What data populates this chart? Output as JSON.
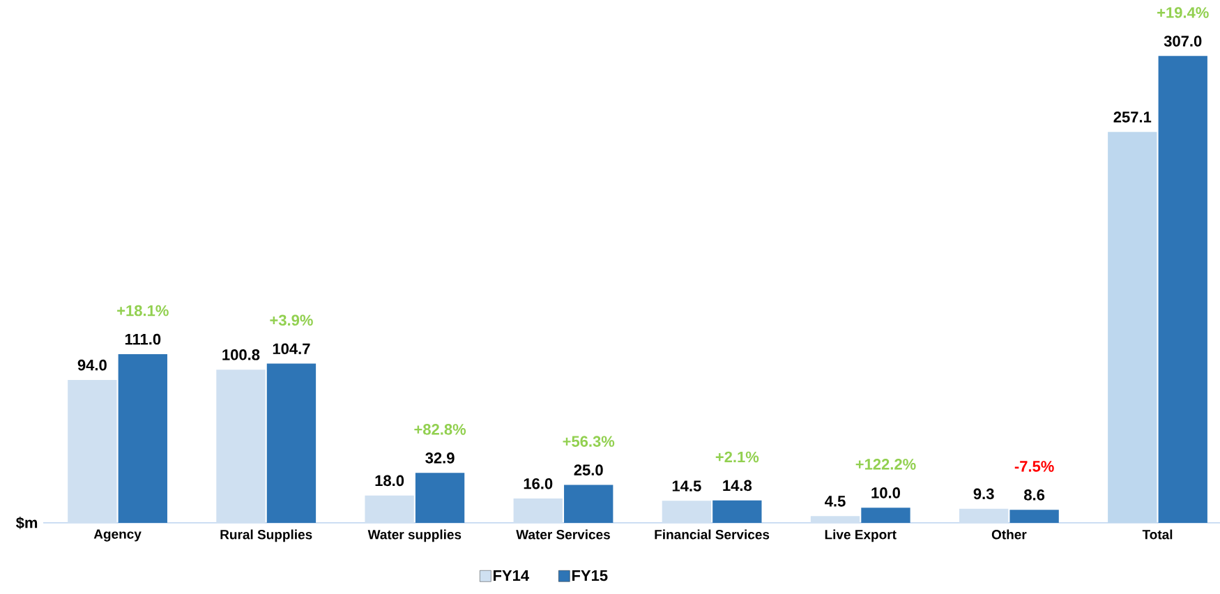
{
  "chart_data": {
    "type": "bar",
    "ylabel": "$m",
    "categories": [
      "Agency",
      "Rural Supplies",
      "Water supplies",
      "Water Services",
      "Financial Services",
      "Live Export",
      "Other",
      "Total"
    ],
    "series": [
      {
        "name": "FY14",
        "color": "#cfe0f1",
        "colors": [
          "#cfe0f1",
          "#cfe0f1",
          "#cfe0f1",
          "#cfe0f1",
          "#cfe0f1",
          "#cfe0f1",
          "#cfe0f1",
          "#bdd7ee"
        ],
        "values": [
          94.0,
          100.8,
          18.0,
          16.0,
          14.5,
          4.5,
          9.3,
          257.1
        ],
        "value_labels": [
          "94.0",
          "100.8",
          "18.0",
          "16.0",
          "14.5",
          "4.5",
          "9.3",
          "257.1"
        ]
      },
      {
        "name": "FY15",
        "color": "#2e75b6",
        "values": [
          111.0,
          104.7,
          32.9,
          25.0,
          14.8,
          10.0,
          8.6,
          307.0
        ],
        "value_labels": [
          "111.0",
          "104.7",
          "32.9",
          "25.0",
          "14.8",
          "10.0",
          "8.6",
          "307.0"
        ]
      }
    ],
    "legend": "bottom",
    "annotations": [
      {
        "text": "+18.1%",
        "x": "Agency",
        "y": 111.0
      },
      {
        "text": "+3.9%",
        "x": "Rural Supplies",
        "y": 104.7
      },
      {
        "text": "+82.8%",
        "x": "Water supplies",
        "y": 32.9
      },
      {
        "text": "+56.3%",
        "x": "Water Services",
        "y": 25.0
      },
      {
        "text": "+2.1%",
        "x": "Financial Services",
        "y": 14.8
      },
      {
        "text": "+122.2%",
        "x": "Live Export",
        "y": 10.0
      },
      {
        "text": "-7.5%",
        "x": "Other",
        "y": 8.6
      },
      {
        "text": "+19.4%",
        "x": "Total",
        "y": 307.0
      }
    ]
  }
}
